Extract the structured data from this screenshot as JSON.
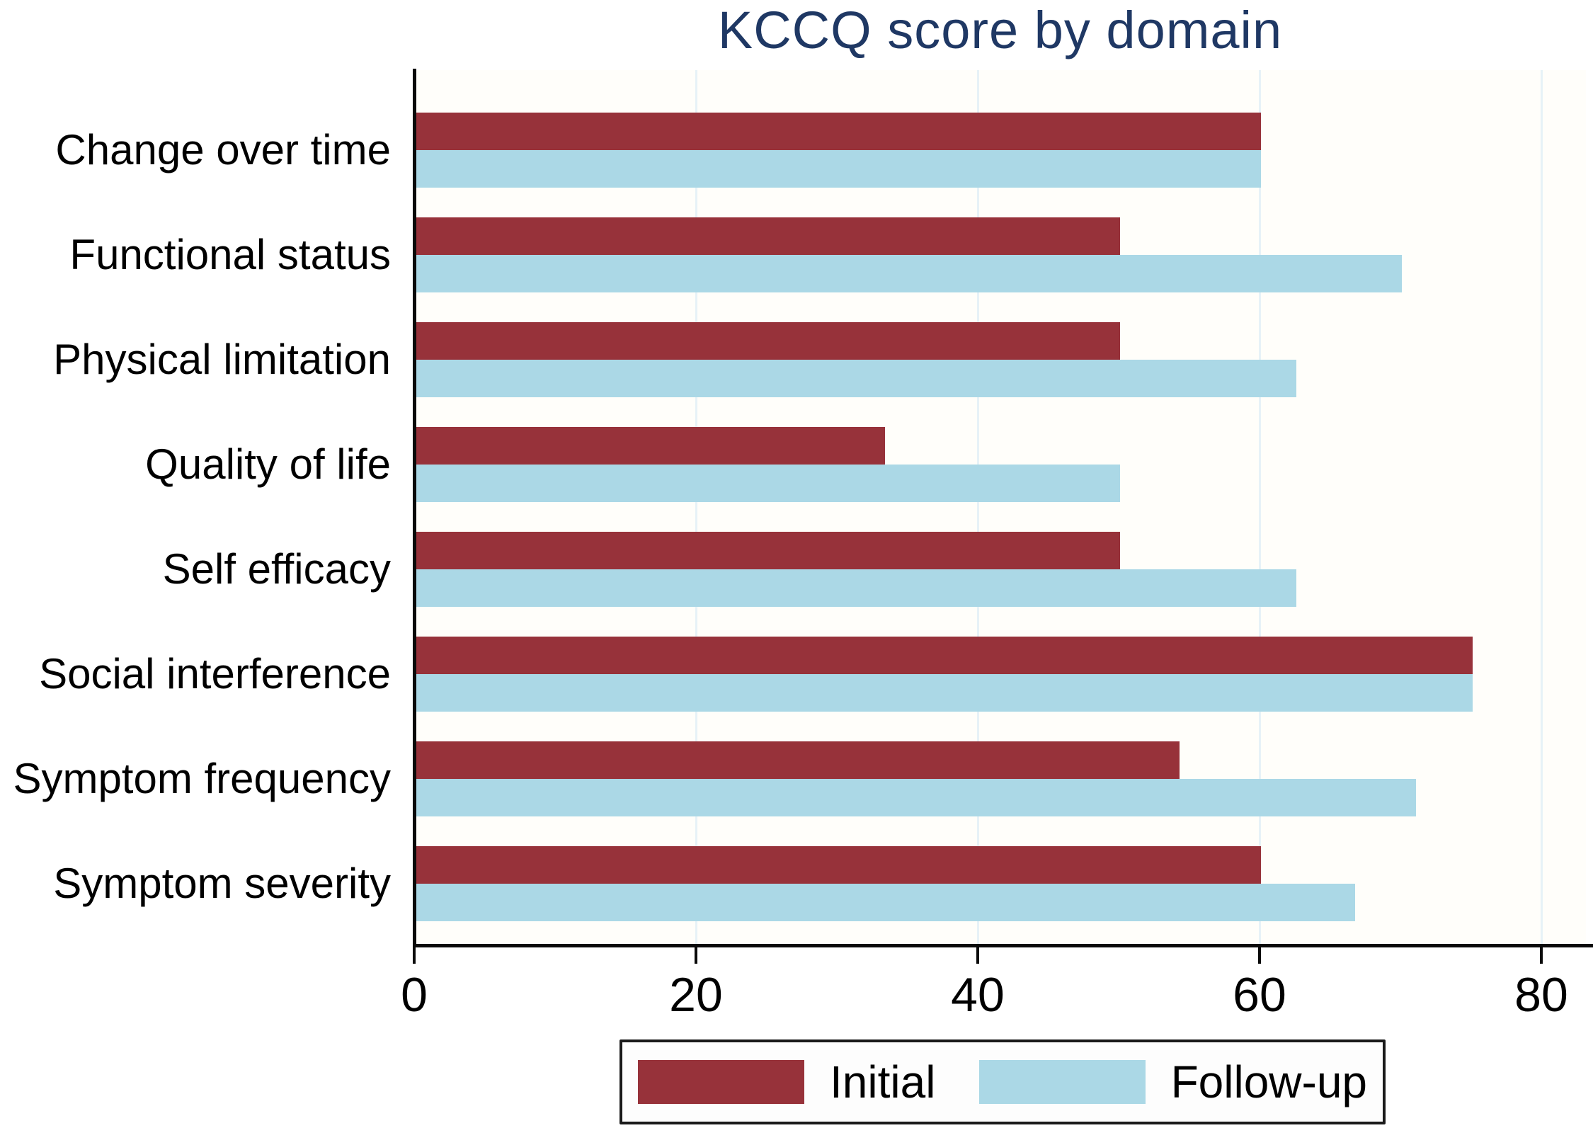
{
  "chart_data": {
    "type": "bar",
    "orientation": "horizontal",
    "title": "KCCQ score by domain",
    "title_color": "#1f3864",
    "categories": [
      "Change over time",
      "Functional status",
      "Physical limitation",
      "Quality of life",
      "Self efficacy",
      "Social interference",
      "Symptom frequency",
      "Symptom severity"
    ],
    "series": [
      {
        "name": "Initial",
        "color": "#97323a",
        "values": [
          60,
          50,
          50,
          33.3,
          50,
          75,
          54.2,
          60
        ]
      },
      {
        "name": "Follow-up",
        "color": "#abd8e6",
        "values": [
          60,
          70,
          62.5,
          50,
          62.5,
          75,
          71,
          66.7
        ]
      }
    ],
    "xlabel": "",
    "ylabel": "",
    "xlim": [
      0,
      80
    ],
    "xticks": [
      0,
      20,
      40,
      60,
      80
    ],
    "grid": "vertical-light",
    "legend_position": "bottom",
    "axis_color": "#000000",
    "gridline_color": "#e7f2f7"
  }
}
